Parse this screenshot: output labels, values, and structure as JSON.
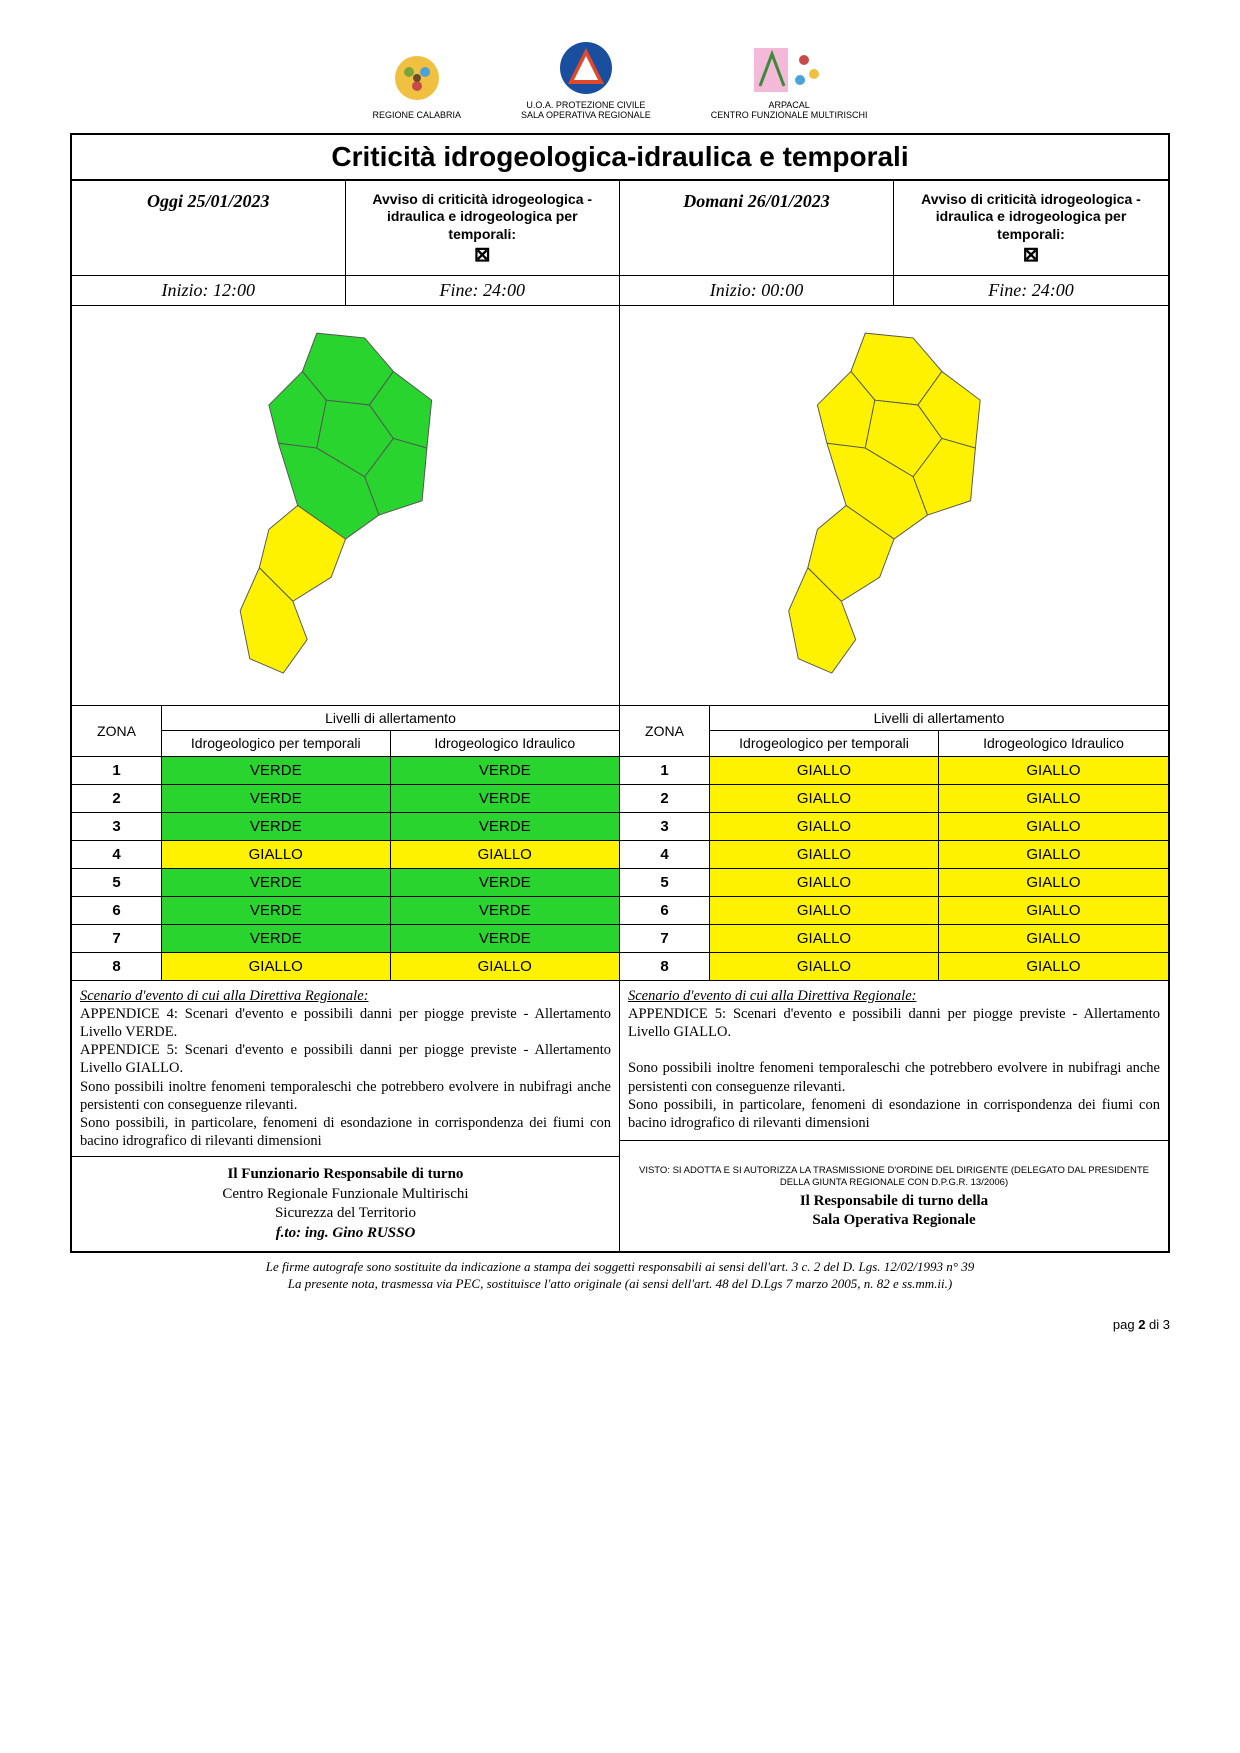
{
  "colors": {
    "verde": "#29d42e",
    "giallo": "#fff200",
    "border": "#000000",
    "yellow_map": "#fff200",
    "green_map": "#29d42e"
  },
  "logos": {
    "regione": {
      "label": "REGIONE CALABRIA"
    },
    "pc": {
      "line1": "U.O.A. PROTEZIONE CIVILE",
      "line2": "SALA OPERATIVA REGIONALE"
    },
    "arpacal": {
      "line1": "ARPACAL",
      "line2": "CENTRO FUNZIONALE MULTIRISCHI"
    }
  },
  "title": "Criticità idrogeologica-idraulica e temporali",
  "days": [
    {
      "date_label": "Oggi 25/01/2023",
      "avviso": "Avviso di criticità idrogeologica - idraulica e idrogeologica per temporali:",
      "inizio_label": "Inizio: 12:00",
      "fine_label": "Fine: 24:00",
      "map_zone_colors": [
        "#29d42e",
        "#29d42e",
        "#29d42e",
        "#fff200",
        "#29d42e",
        "#29d42e",
        "#29d42e",
        "#fff200"
      ],
      "zones": [
        {
          "n": "1",
          "temporali": "VERDE",
          "idraulico": "VERDE"
        },
        {
          "n": "2",
          "temporali": "VERDE",
          "idraulico": "VERDE"
        },
        {
          "n": "3",
          "temporali": "VERDE",
          "idraulico": "VERDE"
        },
        {
          "n": "4",
          "temporali": "GIALLO",
          "idraulico": "GIALLO"
        },
        {
          "n": "5",
          "temporali": "VERDE",
          "idraulico": "VERDE"
        },
        {
          "n": "6",
          "temporali": "VERDE",
          "idraulico": "VERDE"
        },
        {
          "n": "7",
          "temporali": "VERDE",
          "idraulico": "VERDE"
        },
        {
          "n": "8",
          "temporali": "GIALLO",
          "idraulico": "GIALLO"
        }
      ],
      "scenario_title": "Scenario d'evento di cui alla Direttiva Regionale:",
      "scenario_body": "APPENDICE 4: Scenari d'evento e possibili danni per piogge previste - Allertamento Livello VERDE.\nAPPENDICE 5: Scenari d'evento e possibili danni per piogge previste - Allertamento Livello GIALLO.\nSono possibili inoltre fenomeni temporaleschi che potrebbero evolvere in nubifragi anche persistenti con conseguenze rilevanti.\nSono possibili, in particolare, fenomeni di esondazione in corrispondenza dei fiumi con bacino idrografico di rilevanti dimensioni",
      "sig_line1": "Il Funzionario Responsabile di turno",
      "sig_line2": "Centro Regionale Funzionale Multirischi",
      "sig_line3": "Sicurezza del Territorio",
      "sig_line4": "f.to: ing. Gino RUSSO"
    },
    {
      "date_label": "Domani 26/01/2023",
      "avviso": "Avviso di criticità idrogeologica - idraulica e idrogeologica per temporali:",
      "inizio_label": "Inizio: 00:00",
      "fine_label": "Fine: 24:00",
      "map_zone_colors": [
        "#fff200",
        "#fff200",
        "#fff200",
        "#fff200",
        "#fff200",
        "#fff200",
        "#fff200",
        "#fff200"
      ],
      "zones": [
        {
          "n": "1",
          "temporali": "GIALLO",
          "idraulico": "GIALLO"
        },
        {
          "n": "2",
          "temporali": "GIALLO",
          "idraulico": "GIALLO"
        },
        {
          "n": "3",
          "temporali": "GIALLO",
          "idraulico": "GIALLO"
        },
        {
          "n": "4",
          "temporali": "GIALLO",
          "idraulico": "GIALLO"
        },
        {
          "n": "5",
          "temporali": "GIALLO",
          "idraulico": "GIALLO"
        },
        {
          "n": "6",
          "temporali": "GIALLO",
          "idraulico": "GIALLO"
        },
        {
          "n": "7",
          "temporali": "GIALLO",
          "idraulico": "GIALLO"
        },
        {
          "n": "8",
          "temporali": "GIALLO",
          "idraulico": "GIALLO"
        }
      ],
      "scenario_title": "Scenario d'evento di cui alla Direttiva Regionale:",
      "scenario_body": "APPENDICE 5: Scenari d'evento e possibili danni per piogge previste - Allertamento Livello GIALLO.\n\nSono possibili inoltre fenomeni temporaleschi che potrebbero evolvere in nubifragi anche persistenti con conseguenze rilevanti.\nSono possibili, in particolare, fenomeni di esondazione in corrispondenza dei fiumi con bacino idrografico di rilevanti dimensioni",
      "visto": "VISTO: SI ADOTTA E SI AUTORIZZA LA TRASMISSIONE D'ORDINE DEL DIRIGENTE (DELEGATO DAL PRESIDENTE DELLA GIUNTA REGIONALE CON D.P.G.R. 13/2006)",
      "sig_line1": "Il Responsabile di turno della",
      "sig_line2": "Sala Operativa Regionale"
    }
  ],
  "table_headers": {
    "zona": "ZONA",
    "livelli": "Livelli di allertamento",
    "col_temporali": "Idrogeologico per temporali",
    "col_idraulico": "Idrogeologico Idraulico"
  },
  "level_colors": {
    "VERDE": "#29d42e",
    "GIALLO": "#fff200"
  },
  "footnote1": "Le firme autografe sono sostituite da indicazione a stampa dei soggetti responsabili ai sensi dell'art. 3 c. 2 del D. Lgs. 12/02/1993 n° 39",
  "footnote2": "La presente nota, trasmessa via PEC, sostituisce l'atto originale (ai sensi dell'art. 48 del D.Lgs 7 marzo 2005, n. 82 e ss.mm.ii.)",
  "page_label_pre": "pag ",
  "page_number": "2",
  "page_label_mid": " di ",
  "page_total": "3"
}
